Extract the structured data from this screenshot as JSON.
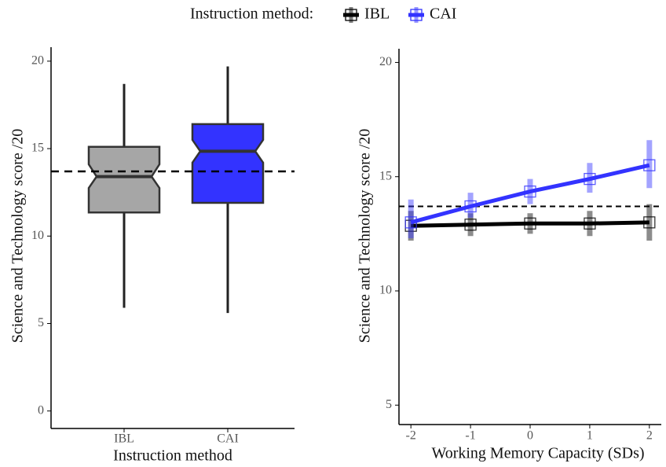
{
  "legend": {
    "title": "Instruction method:"
  },
  "chart_data": [
    {
      "type": "box",
      "x_label": "Instruction method",
      "y_label": "Science and Technology score /20",
      "categories": [
        "IBL",
        "CAI"
      ],
      "boxes": [
        {
          "color": "#a6a6a6",
          "whisker_low": 5.9,
          "q1": 11.35,
          "notch_low": 12.75,
          "median": 13.4,
          "notch_high": 14.1,
          "q3": 15.1,
          "whisker_high": 18.7
        },
        {
          "color": "#3333ff",
          "whisker_low": 5.6,
          "q1": 11.9,
          "notch_low": 14.2,
          "median": 14.85,
          "notch_high": 15.5,
          "q3": 16.4,
          "whisker_high": 19.7
        }
      ],
      "reference_line": 13.7,
      "ylim": [
        -1,
        20.8
      ],
      "yticks": [
        0,
        5,
        10,
        15,
        20
      ],
      "grid": false
    },
    {
      "type": "line",
      "x_label": "Working Memory Capacity (SDs)",
      "y_label": "Science and Technology score /20",
      "x": [
        -2,
        -1,
        0,
        1,
        2
      ],
      "series": [
        {
          "name": "IBL",
          "color": "#000000",
          "values": [
            12.85,
            12.9,
            12.95,
            12.95,
            13.0
          ],
          "error_low": [
            12.2,
            12.4,
            12.5,
            12.4,
            12.2
          ],
          "error_high": [
            13.5,
            13.4,
            13.4,
            13.5,
            13.8
          ]
        },
        {
          "name": "CAI",
          "color": "#3333ff",
          "values": [
            13.0,
            13.7,
            14.35,
            14.9,
            15.5
          ],
          "error_low": [
            12.3,
            13.2,
            13.8,
            14.3,
            14.5
          ],
          "error_high": [
            14.0,
            14.3,
            14.9,
            15.6,
            16.6
          ]
        }
      ],
      "reference_line": 13.7,
      "xlim": [
        -2.2,
        2.2
      ],
      "xticks": [
        -2,
        -1,
        0,
        1,
        2
      ],
      "ylim": [
        4.15,
        20.6
      ],
      "yticks": [
        5,
        10,
        15,
        20
      ],
      "grid": false
    }
  ]
}
